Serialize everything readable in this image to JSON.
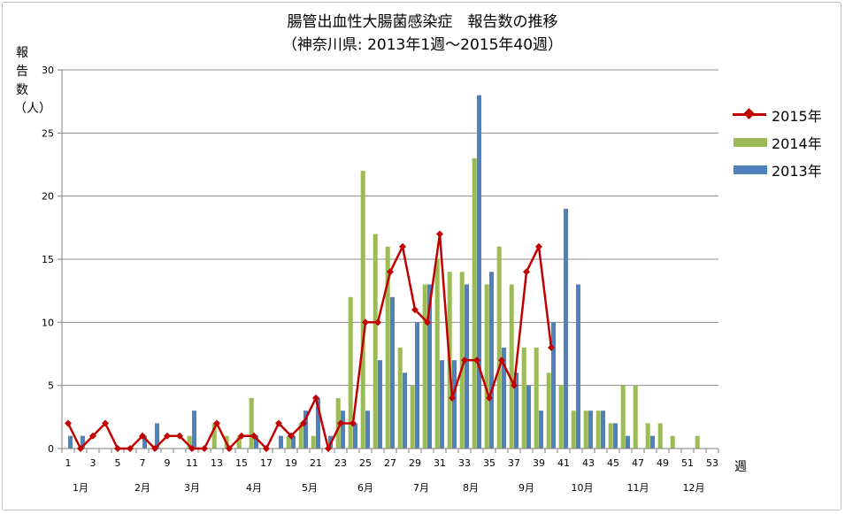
{
  "title_line1": "腸管出血性大腸菌感染症　報告数の推移",
  "title_line2": "（神奈川県: 2013年1週～2015年40週）",
  "colors": {
    "s2015": "#c00000",
    "s2014": "#9bbb59",
    "s2013": "#4f81bd",
    "grid": "#8c8c8c",
    "axis": "#7f7f7f"
  },
  "chart_data": {
    "type": "bar",
    "title": "腸管出血性大腸菌感染症　報告数の推移",
    "subtitle": "（神奈川県: 2013年1週～2015年40週）",
    "xlabel": "週",
    "ylabel": "報告数（人）",
    "ylim": [
      0,
      30
    ],
    "yticks": [
      "0",
      "5",
      "10",
      "15",
      "20",
      "25",
      "30"
    ],
    "grid": true,
    "legend_position": "right",
    "weeks": 53,
    "x_tick_labels": [
      "1",
      "3",
      "5",
      "7",
      "9",
      "11",
      "13",
      "15",
      "17",
      "19",
      "21",
      "23",
      "25",
      "27",
      "29",
      "31",
      "33",
      "35",
      "37",
      "39",
      "41",
      "43",
      "45",
      "47",
      "49",
      "51",
      "53"
    ],
    "month_labels": [
      {
        "label": "1月",
        "week": 2
      },
      {
        "label": "2月",
        "week": 7
      },
      {
        "label": "3月",
        "week": 11
      },
      {
        "label": "4月",
        "week": 16
      },
      {
        "label": "5月",
        "week": 20.5
      },
      {
        "label": "6月",
        "week": 25
      },
      {
        "label": "7月",
        "week": 29.5
      },
      {
        "label": "8月",
        "week": 33.5
      },
      {
        "label": "9月",
        "week": 38
      },
      {
        "label": "10月",
        "week": 42.5
      },
      {
        "label": "11月",
        "week": 47
      },
      {
        "label": "12月",
        "week": 51.5
      }
    ],
    "series": [
      {
        "name": "2015年",
        "type": "line",
        "values": [
          2,
          0,
          1,
          2,
          0,
          0,
          1,
          0,
          1,
          1,
          0,
          0,
          2,
          0,
          1,
          1,
          0,
          2,
          1,
          2,
          4,
          0,
          2,
          2,
          10,
          10,
          14,
          16,
          11,
          10,
          17,
          4,
          7,
          7,
          4,
          7,
          5,
          14,
          16,
          8
        ]
      },
      {
        "name": "2014年",
        "type": "bar",
        "values": [
          0,
          0,
          0,
          0,
          0,
          0,
          0,
          0,
          0,
          0,
          1,
          0,
          2,
          1,
          1,
          4,
          0,
          0,
          1,
          2,
          1,
          0,
          4,
          12,
          22,
          17,
          16,
          8,
          5,
          13,
          15,
          14,
          14,
          23,
          13,
          16,
          13,
          8,
          8,
          6,
          5,
          3,
          3,
          3,
          2,
          5,
          5,
          2,
          2,
          1,
          0,
          1,
          0
        ]
      },
      {
        "name": "2013年",
        "type": "bar",
        "values": [
          1,
          1,
          0,
          0,
          0,
          0,
          1,
          2,
          0,
          0,
          3,
          0,
          0,
          0,
          0,
          1,
          0,
          1,
          1,
          3,
          4,
          1,
          3,
          2,
          3,
          7,
          12,
          6,
          10,
          13,
          7,
          7,
          13,
          28,
          14,
          8,
          6,
          5,
          3,
          10,
          19,
          13,
          3,
          3,
          2,
          1,
          0,
          1,
          0,
          0,
          0,
          0,
          0
        ]
      }
    ]
  }
}
